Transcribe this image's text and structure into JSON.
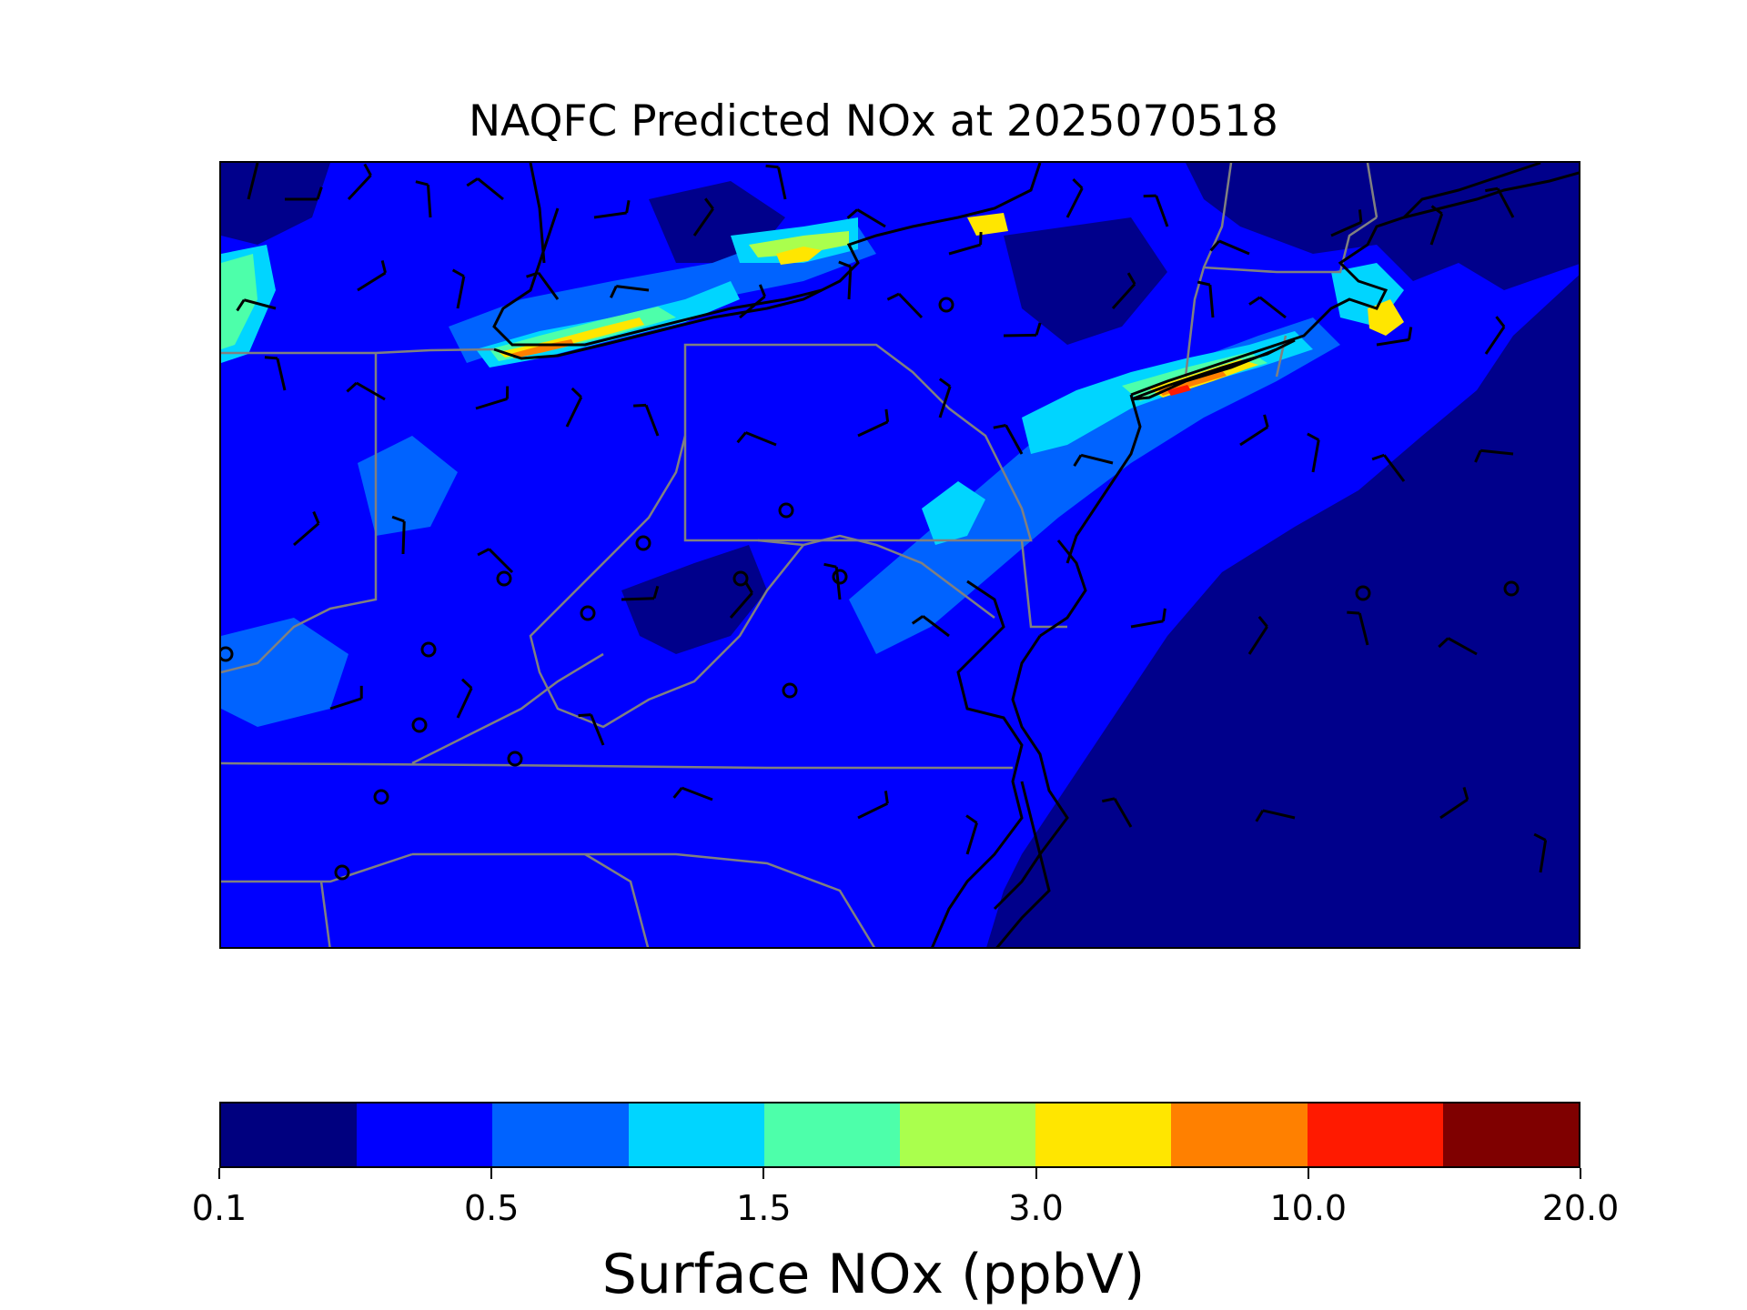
{
  "figure": {
    "title": "NAQFC Predicted NOx at 2025070518"
  },
  "colorbar": {
    "label": "Surface NOx (ppbV)",
    "colors": [
      "#00007f",
      "#0000ff",
      "#0063ff",
      "#00d5ff",
      "#4dffaa",
      "#aaff4d",
      "#ffe600",
      "#ff8000",
      "#ff1a00",
      "#7f0000"
    ],
    "tick_labels": [
      "0.1",
      "0.5",
      "1.5",
      "3.0",
      "10.0",
      "20.0"
    ],
    "tick_boundary_index": [
      0,
      2,
      4,
      6,
      8,
      10
    ]
  },
  "map": {
    "colors": {
      "background": "#00008b",
      "low": "#0000ff",
      "mid": "#0063ff",
      "cyan": "#00d5ff",
      "green": "#4dffaa",
      "lime": "#aaff4d",
      "yellow": "#ffe600",
      "orange": "#ff8000",
      "red": "#ff1a00",
      "coast": "#000000",
      "state_border": "#808080",
      "barb": "#000000"
    },
    "calm_station_count": 16,
    "wind_barb_count": 60
  }
}
